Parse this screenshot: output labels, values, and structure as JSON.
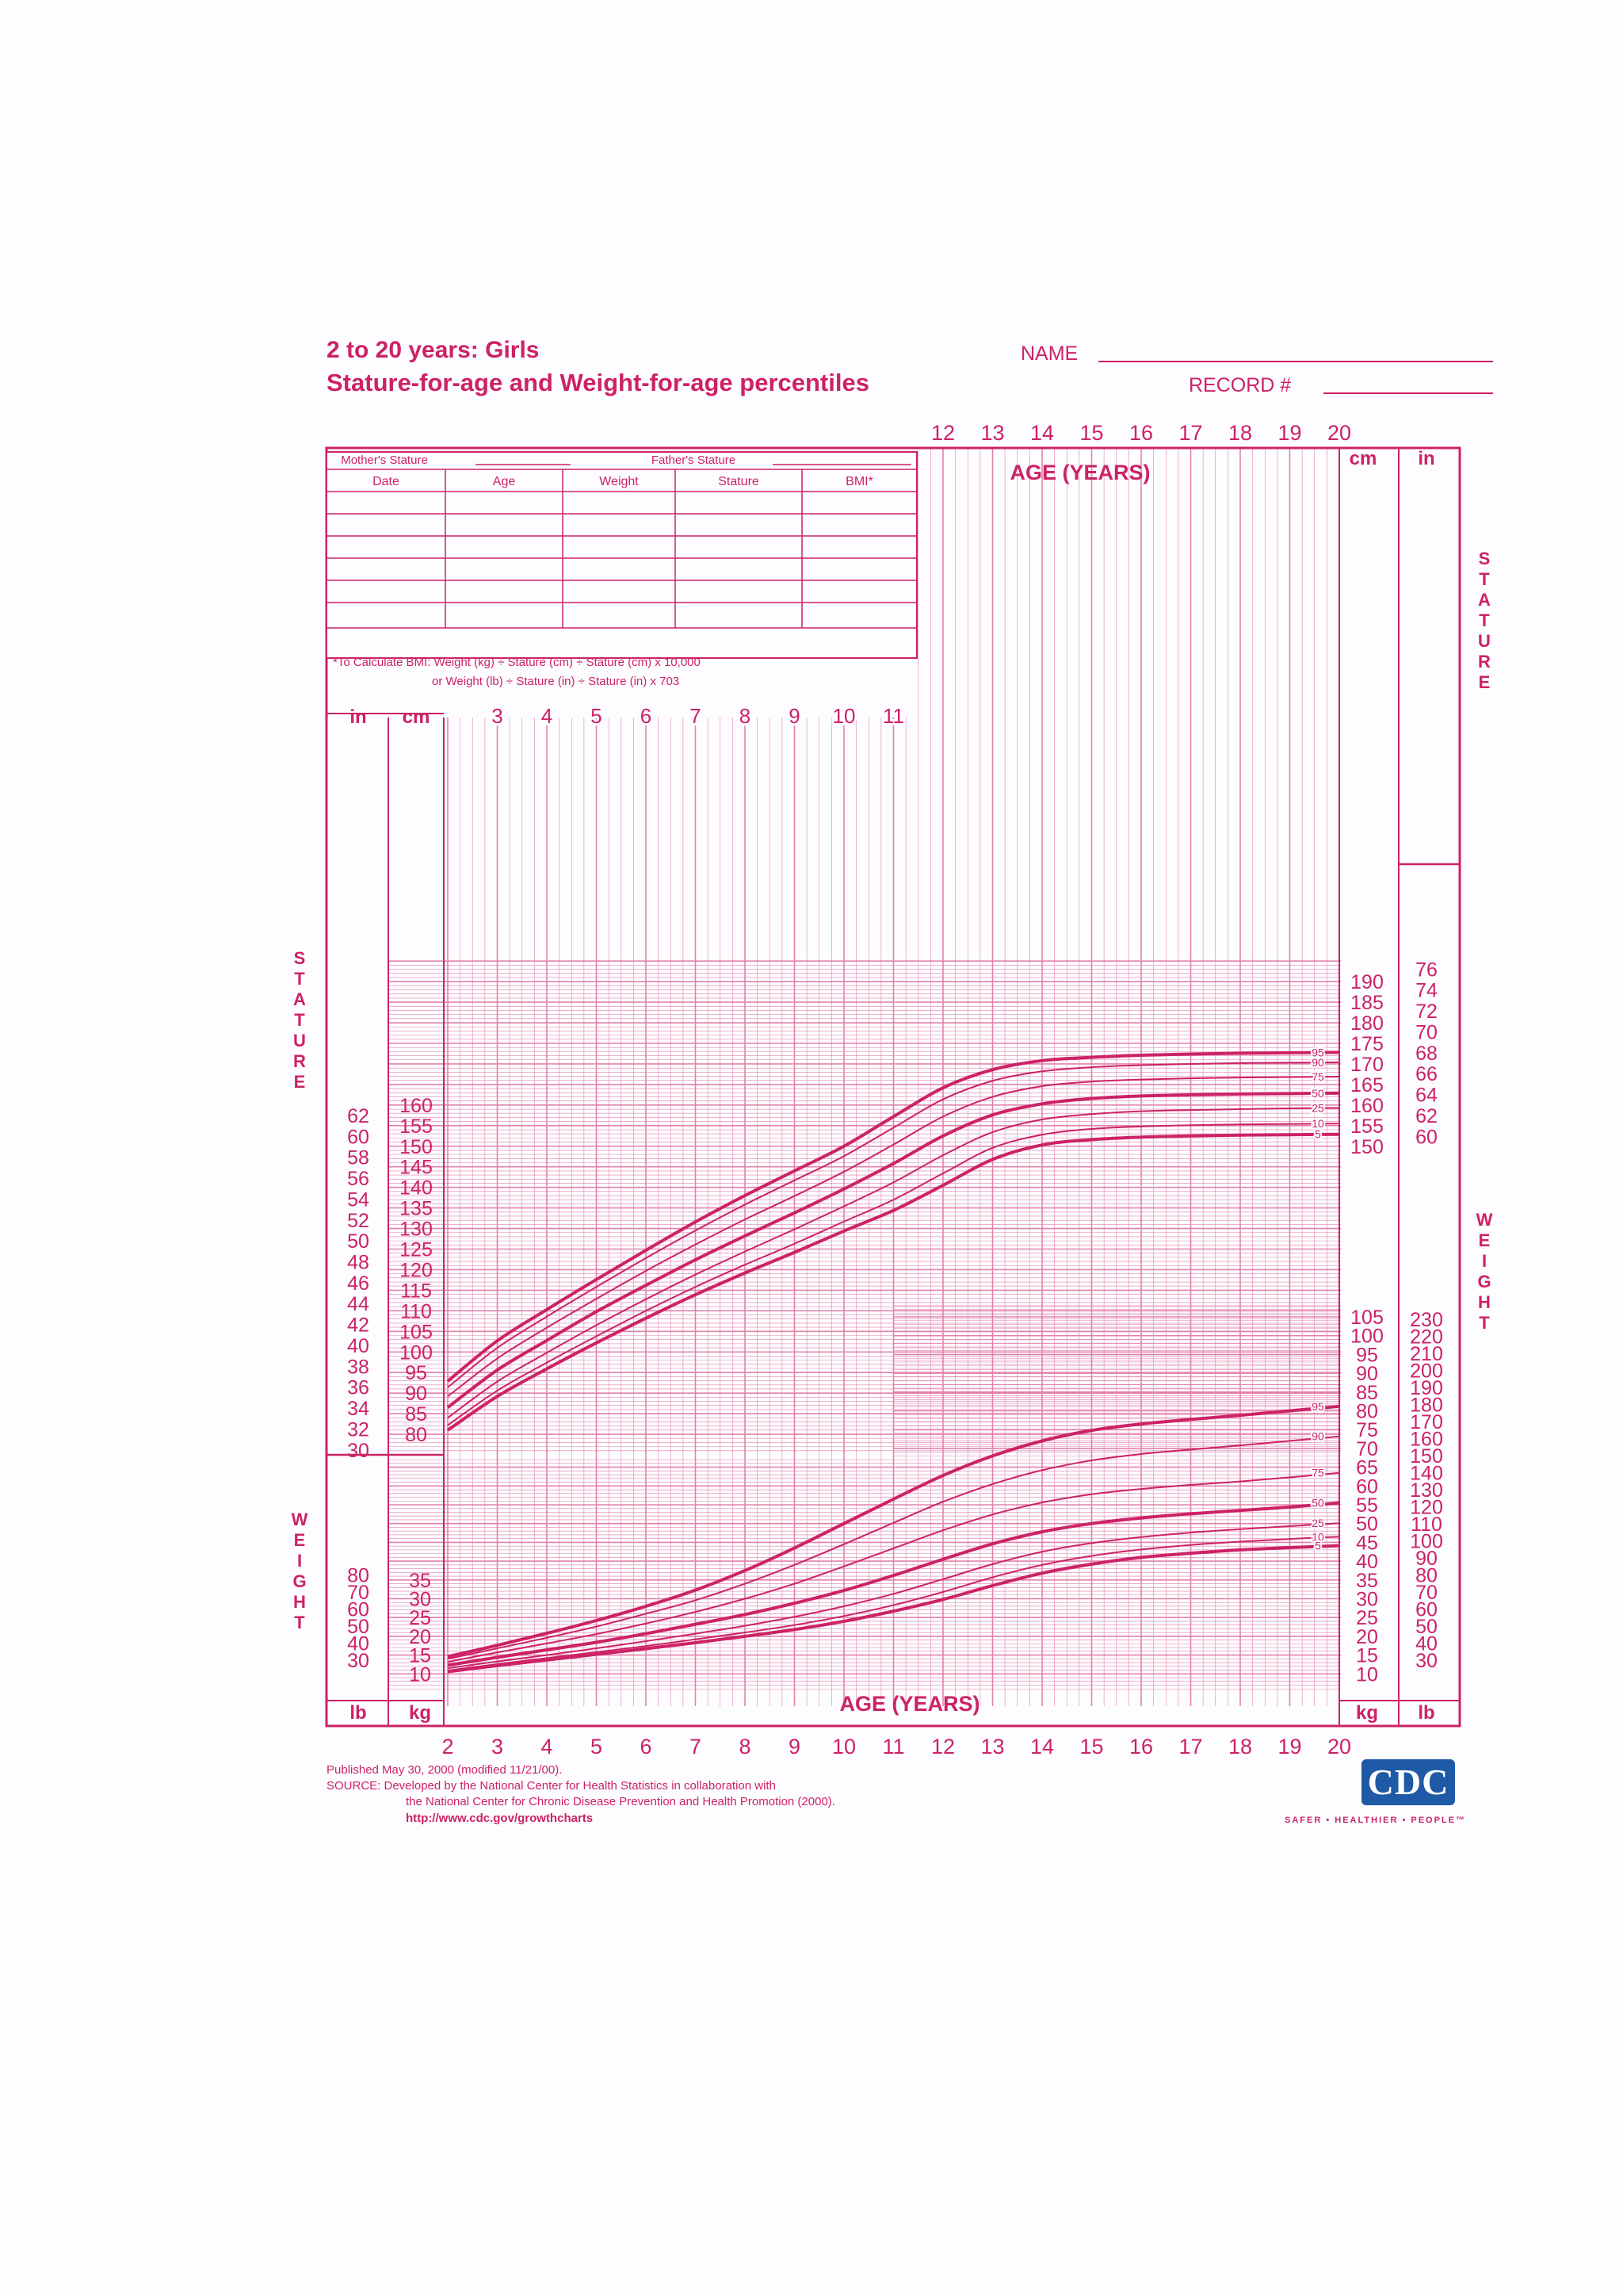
{
  "header": {
    "title_line1": "2 to 20 years: Girls",
    "title_line2": "Stature-for-age and Weight-for-age percentiles",
    "name_label": "NAME",
    "record_label": "RECORD #"
  },
  "record_table": {
    "mother_label": "Mother's Stature",
    "father_label": "Father's Stature",
    "columns": [
      "Date",
      "Age",
      "Weight",
      "Stature",
      "BMI*"
    ],
    "bmi_note_line1": "*To Calculate BMI: Weight (kg) ÷ Stature (cm) ÷ Stature (cm) x 10,000",
    "bmi_note_line2": "or Weight (lb) ÷ Stature (in) ÷ Stature (in) x 703"
  },
  "footer": {
    "published": "Published May 30, 2000 (modified 11/21/00).",
    "source_line1": "SOURCE: Developed by the National Center for Health Statistics in collaboration with",
    "source_line2": "the National Center for Chronic Disease Prevention and Health Promotion (2000).",
    "url": "http://www.cdc.gov/growthcharts",
    "logo_text": "CDC",
    "tagline": "SAFER • HEALTHIER • PEOPLE™"
  },
  "chart_data": {
    "type": "line",
    "title": "Stature-for-age and Weight-for-age percentiles",
    "xlabel": "AGE (YEARS)",
    "xlim": [
      2,
      20
    ],
    "x_ticks_bottom": [
      2,
      3,
      4,
      5,
      6,
      7,
      8,
      9,
      10,
      11,
      12,
      13,
      14,
      15,
      16,
      17,
      18,
      19,
      20
    ],
    "x_ticks_top": [
      12,
      13,
      14,
      15,
      16,
      17,
      18,
      19,
      20
    ],
    "x_ticks_stature_inner": [
      3,
      4,
      5,
      6,
      7,
      8,
      9,
      10,
      11
    ],
    "stature": {
      "label": "STATURE",
      "unit_left_outer": "in",
      "unit_left_inner": "cm",
      "unit_right_inner": "cm",
      "unit_right_outer": "in",
      "ylim_cm": [
        75,
        195
      ],
      "left_cm_ticks": [
        80,
        85,
        90,
        95,
        100,
        105,
        110,
        115,
        120,
        125,
        130,
        135,
        140,
        145,
        150,
        155,
        160
      ],
      "left_in_ticks": [
        30,
        32,
        34,
        36,
        38,
        40,
        42,
        44,
        46,
        48,
        50,
        52,
        54,
        56,
        58,
        60,
        62
      ],
      "right_cm_ticks": [
        150,
        155,
        160,
        165,
        170,
        175,
        180,
        185,
        190
      ],
      "right_in_ticks": [
        60,
        62,
        64,
        66,
        68,
        70,
        72,
        74,
        76
      ],
      "x": [
        2,
        3,
        4,
        5,
        6,
        7,
        8,
        9,
        10,
        11,
        12,
        13,
        14,
        15,
        16,
        17,
        18,
        19,
        20
      ],
      "series": [
        {
          "name": "95",
          "values": [
            92.9,
            102.7,
            110.3,
            117.6,
            124.7,
            131.6,
            138.0,
            144.0,
            150.0,
            157.2,
            164.2,
            168.6,
            170.8,
            171.6,
            172.1,
            172.4,
            172.6,
            172.7,
            172.8
          ]
        },
        {
          "name": "90",
          "values": [
            91.4,
            101.0,
            108.6,
            115.8,
            122.8,
            129.5,
            135.8,
            141.7,
            147.6,
            154.5,
            161.4,
            165.9,
            168.2,
            169.2,
            169.7,
            170.0,
            170.2,
            170.3,
            170.4
          ]
        },
        {
          "name": "75",
          "values": [
            89.2,
            98.4,
            105.9,
            112.9,
            119.7,
            126.1,
            132.2,
            137.9,
            143.8,
            150.4,
            157.2,
            162.0,
            164.6,
            165.7,
            166.2,
            166.5,
            166.7,
            166.8,
            166.9
          ]
        },
        {
          "name": "50",
          "values": [
            86.5,
            95.6,
            102.8,
            109.8,
            116.2,
            122.4,
            128.2,
            133.8,
            139.6,
            145.8,
            152.5,
            157.6,
            160.3,
            161.6,
            162.2,
            162.5,
            162.7,
            162.8,
            162.9
          ]
        },
        {
          "name": "25",
          "values": [
            84.0,
            92.8,
            99.8,
            106.5,
            112.8,
            118.8,
            124.4,
            129.8,
            135.4,
            141.2,
            147.8,
            153.4,
            156.5,
            157.8,
            158.5,
            158.8,
            159.0,
            159.2,
            159.3
          ]
        },
        {
          "name": "10",
          "values": [
            82.2,
            90.6,
            97.4,
            103.8,
            110.0,
            115.8,
            121.2,
            126.3,
            131.7,
            137.0,
            143.4,
            149.6,
            152.8,
            154.2,
            154.8,
            155.1,
            155.3,
            155.4,
            155.5
          ]
        },
        {
          "name": "5",
          "values": [
            81.0,
            89.2,
            95.9,
            102.2,
            108.2,
            113.9,
            119.2,
            124.2,
            129.4,
            134.4,
            140.5,
            146.8,
            150.3,
            151.6,
            152.2,
            152.5,
            152.7,
            152.8,
            152.9
          ]
        }
      ]
    },
    "weight": {
      "label": "WEIGHT",
      "unit_left_outer": "lb",
      "unit_left_inner": "kg",
      "unit_right_inner": "kg",
      "unit_right_outer": "lb",
      "ylim_kg": [
        6,
        108
      ],
      "left_kg_ticks": [
        10,
        15,
        20,
        25,
        30,
        35
      ],
      "left_lb_ticks": [
        30,
        40,
        50,
        60,
        70,
        80
      ],
      "right_kg_ticks": [
        10,
        15,
        20,
        25,
        30,
        35,
        40,
        45,
        50,
        55,
        60,
        65,
        70,
        75,
        80,
        85,
        90,
        95,
        100,
        105
      ],
      "right_lb_ticks": [
        30,
        40,
        50,
        60,
        70,
        80,
        90,
        100,
        110,
        120,
        130,
        140,
        150,
        160,
        170,
        180,
        190,
        200,
        210,
        220,
        230
      ],
      "x": [
        2,
        3,
        4,
        5,
        6,
        7,
        8,
        9,
        10,
        11,
        12,
        13,
        14,
        15,
        16,
        17,
        18,
        19,
        20
      ],
      "series": [
        {
          "name": "95",
          "values": [
            14.6,
            17.6,
            20.8,
            24.2,
            28.0,
            32.3,
            37.5,
            43.5,
            50.0,
            56.5,
            62.8,
            68.0,
            72.0,
            74.8,
            76.5,
            77.7,
            78.8,
            80.0,
            81.2
          ]
        },
        {
          "name": "90",
          "values": [
            14.0,
            16.8,
            19.6,
            22.6,
            26.0,
            29.6,
            34.0,
            39.0,
            44.5,
            50.2,
            55.8,
            60.5,
            64.2,
            66.8,
            68.5,
            69.7,
            70.8,
            72.0,
            73.2
          ]
        },
        {
          "name": "75",
          "values": [
            13.2,
            15.7,
            18.1,
            20.6,
            23.4,
            26.5,
            30.0,
            34.0,
            38.6,
            43.4,
            48.2,
            52.4,
            55.6,
            57.8,
            59.2,
            60.3,
            61.2,
            62.3,
            63.5
          ]
        },
        {
          "name": "50",
          "values": [
            12.3,
            14.4,
            16.4,
            18.4,
            20.7,
            23.2,
            25.8,
            28.8,
            32.2,
            36.2,
            40.5,
            44.6,
            47.8,
            50.0,
            51.5,
            52.6,
            53.5,
            54.4,
            55.5
          ]
        },
        {
          "name": "25",
          "values": [
            11.5,
            13.3,
            15.0,
            16.8,
            18.7,
            20.7,
            22.8,
            25.2,
            28.0,
            31.3,
            35.2,
            39.2,
            42.5,
            44.8,
            46.4,
            47.6,
            48.5,
            49.3,
            50.1
          ]
        },
        {
          "name": "10",
          "values": [
            10.9,
            12.6,
            14.2,
            15.8,
            17.4,
            19.2,
            21.0,
            23.0,
            25.4,
            28.3,
            31.8,
            35.7,
            39.0,
            41.4,
            43.1,
            44.3,
            45.2,
            45.9,
            46.5
          ]
        },
        {
          "name": "5",
          "values": [
            10.6,
            12.2,
            13.7,
            15.2,
            16.7,
            18.3,
            20.0,
            21.8,
            24.0,
            26.7,
            29.8,
            33.5,
            36.8,
            39.2,
            41.0,
            42.1,
            43.0,
            43.6,
            44.1
          ]
        }
      ]
    }
  }
}
